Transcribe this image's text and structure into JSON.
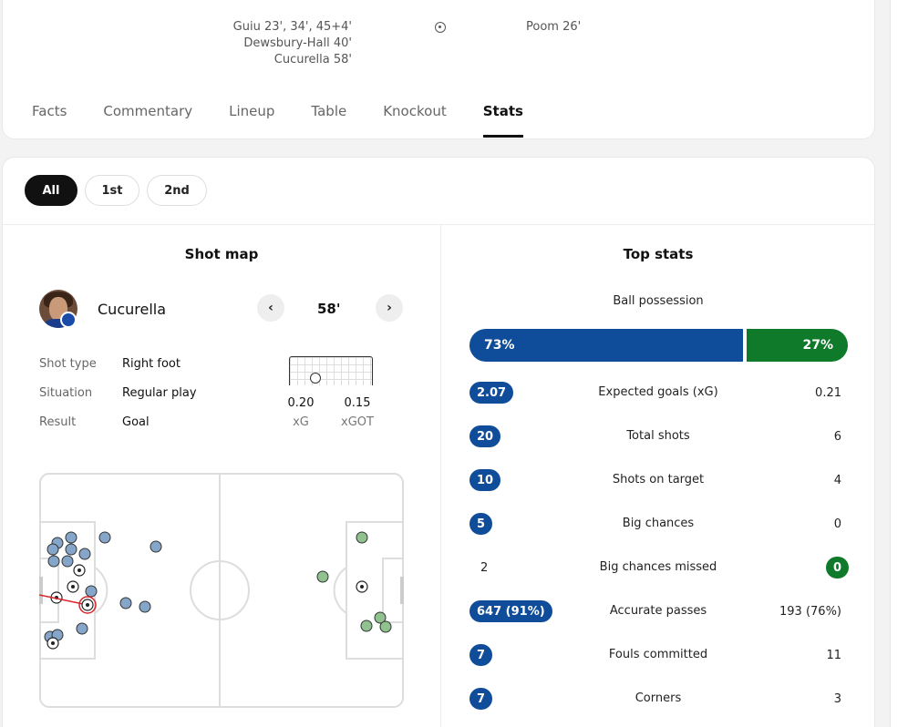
{
  "scorers": {
    "home": [
      "Guiu 23', 34', 45+4'",
      "Dewsbury-Hall 40'",
      "Cucurella 58'"
    ],
    "away": [
      "Poom 26'"
    ],
    "icon": "football-icon"
  },
  "tabs": [
    "Facts",
    "Commentary",
    "Lineup",
    "Table",
    "Knockout",
    "Stats"
  ],
  "active_tab": "Stats",
  "periods": [
    "All",
    "1st",
    "2nd"
  ],
  "active_period": "All",
  "shot_map": {
    "title": "Shot map",
    "player": "Cucurella",
    "minute": "58'",
    "prev_icon": "chevron-left-icon",
    "next_icon": "chevron-right-icon",
    "details": [
      {
        "label": "Shot type",
        "value": "Right foot"
      },
      {
        "label": "Situation",
        "value": "Regular play"
      },
      {
        "label": "Result",
        "value": "Goal"
      }
    ],
    "xg": "0.20",
    "xg_label": "xG",
    "xgot": "0.15",
    "xgot_label": "xGOT"
  },
  "top_stats": {
    "title": "Top stats",
    "possession_label": "Ball possession",
    "possession_home": "73%",
    "possession_away": "27%",
    "possession_home_fraction": 0.73,
    "home_color": "#0f4c99",
    "away_color": "#0e7a2a",
    "rows": [
      {
        "label": "Expected goals (xG)",
        "home": "2.07",
        "away": "0.21",
        "winner": "home"
      },
      {
        "label": "Total shots",
        "home": "20",
        "away": "6",
        "winner": "home"
      },
      {
        "label": "Shots on target",
        "home": "10",
        "away": "4",
        "winner": "home"
      },
      {
        "label": "Big chances",
        "home": "5",
        "away": "0",
        "winner": "home"
      },
      {
        "label": "Big chances missed",
        "home": "2",
        "away": "0",
        "winner": "away"
      },
      {
        "label": "Accurate passes",
        "home": "647 (91%)",
        "away": "193 (76%)",
        "winner": "home"
      },
      {
        "label": "Fouls committed",
        "home": "7",
        "away": "11",
        "winner": "home"
      },
      {
        "label": "Corners",
        "home": "7",
        "away": "3",
        "winner": "home"
      }
    ]
  }
}
